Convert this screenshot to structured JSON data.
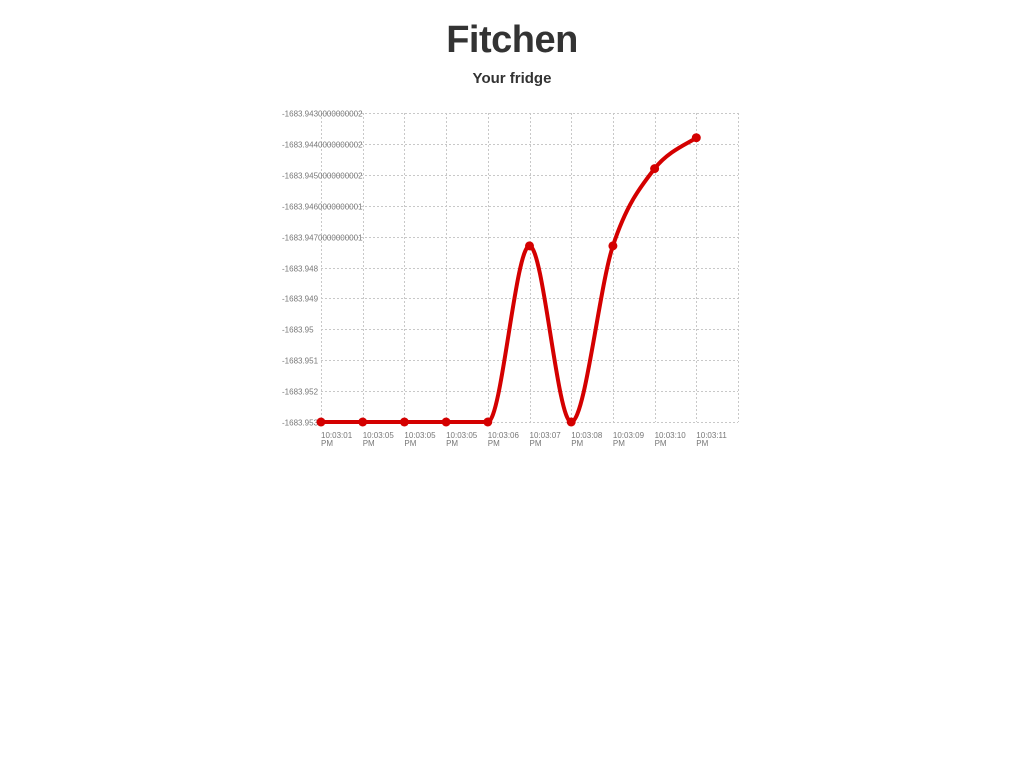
{
  "header": {
    "title": "Fitchen"
  },
  "section": {
    "title": "Your fridge"
  },
  "chart_data": {
    "type": "line",
    "title": "",
    "xlabel": "",
    "ylabel": "",
    "grid": true,
    "legend": "none",
    "color": "#d40000",
    "categories": [
      "10:03:01 PM",
      "10:03:05 PM",
      "10:03:05 PM",
      "10:03:05 PM",
      "10:03:06 PM",
      "10:03:07 PM",
      "10:03:08 PM",
      "10:03:09 PM",
      "10:03:10 PM",
      "10:03:11 PM"
    ],
    "x_tick_labels": [
      [
        "10:03:01",
        "PM"
      ],
      [
        "10:03:05",
        "PM"
      ],
      [
        "10:03:05",
        "PM"
      ],
      [
        "10:03:05",
        "PM"
      ],
      [
        "10:03:06",
        "PM"
      ],
      [
        "10:03:07",
        "PM"
      ],
      [
        "10:03:08",
        "PM"
      ],
      [
        "10:03:09",
        "PM"
      ],
      [
        "10:03:10",
        "PM"
      ],
      [
        "10:03:11",
        "PM"
      ]
    ],
    "values": [
      -1683.953,
      -1683.953,
      -1683.953,
      -1683.953,
      -1683.953,
      -1683.9473,
      -1683.953,
      -1683.9473,
      -1683.9448,
      -1683.9438
    ],
    "y_ticks": [
      {
        "value": -1683.953,
        "label": "-1683.953"
      },
      {
        "value": -1683.952,
        "label": "-1683.952"
      },
      {
        "value": -1683.951,
        "label": "-1683.951"
      },
      {
        "value": -1683.95,
        "label": "-1683.95"
      },
      {
        "value": -1683.949,
        "label": "-1683.949"
      },
      {
        "value": -1683.948,
        "label": "-1683.948"
      },
      {
        "value": -1683.947,
        "label": "-1683.9470000000001"
      },
      {
        "value": -1683.946,
        "label": "-1683.9460000000001"
      },
      {
        "value": -1683.945,
        "label": "-1683.9450000000002"
      },
      {
        "value": -1683.944,
        "label": "-1683.9440000000002"
      },
      {
        "value": -1683.943,
        "label": "-1683.9430000000002"
      }
    ],
    "ylim": [
      -1683.953,
      -1683.943
    ]
  }
}
